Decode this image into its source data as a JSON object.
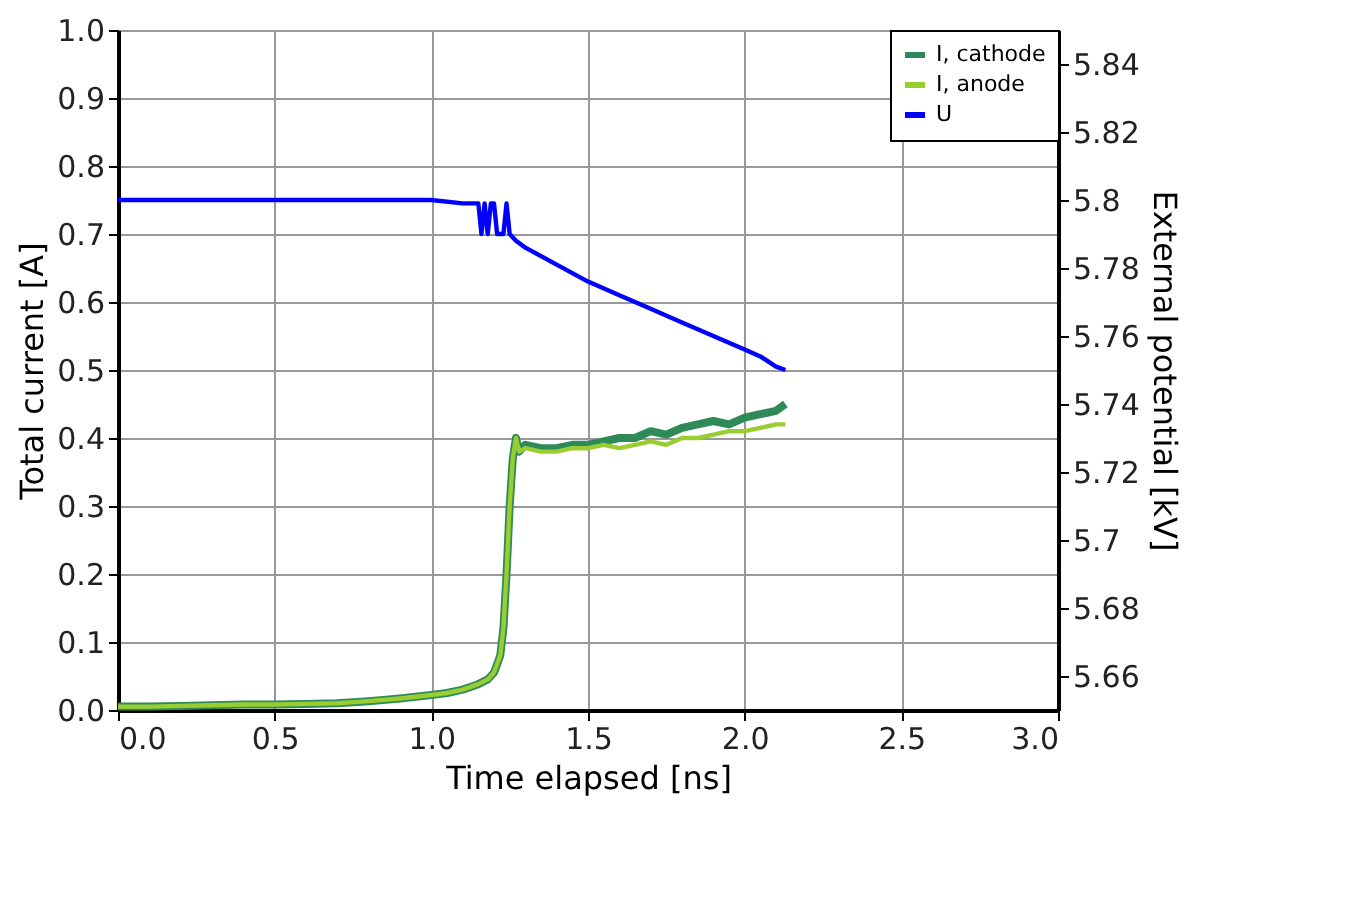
{
  "chart_data": {
    "type": "line",
    "xlabel": "Time elapsed [ns]",
    "ylabel": "Total current [A]",
    "y2label": "External potential [kV]",
    "xlim": [
      0,
      3
    ],
    "xticks": [
      {
        "value": 0,
        "label": "0.0"
      },
      0.5,
      {
        "value": 1,
        "label": "1.0"
      },
      1.5,
      {
        "value": 2,
        "label": "2.0"
      },
      2.5,
      {
        "value": 3,
        "label": "3.0"
      }
    ],
    "ylim": [
      0,
      1
    ],
    "yticks": [
      {
        "value": 0,
        "label": "0.0"
      },
      0.1,
      0.2,
      0.3,
      0.4,
      0.5,
      0.6,
      0.7,
      0.8,
      0.9,
      {
        "value": 1,
        "label": "1.0"
      }
    ],
    "y2lim": [
      5.65,
      5.85
    ],
    "y2ticks": [
      5.66,
      5.68,
      5.7,
      5.72,
      5.74,
      5.76,
      5.78,
      5.8,
      5.82,
      5.84
    ],
    "grid": true,
    "legend": "top right",
    "line_style": "solid",
    "marker": "none",
    "series": [
      {
        "name": "I, cathode",
        "color": "#2e8b57",
        "x": [
          0,
          0.1,
          0.2,
          0.3,
          0.4,
          0.5,
          0.6,
          0.7,
          0.8,
          0.9,
          1.0,
          1.05,
          1.1,
          1.15,
          1.18,
          1.2,
          1.22,
          1.23,
          1.24,
          1.25,
          1.26,
          1.27,
          1.28,
          1.3,
          1.35,
          1.4,
          1.45,
          1.5,
          1.55,
          1.6,
          1.65,
          1.7,
          1.75,
          1.8,
          1.85,
          1.9,
          1.95,
          2.0,
          2.05,
          2.1,
          2.13
        ],
        "values": [
          0.005,
          0.005,
          0.006,
          0.007,
          0.008,
          0.008,
          0.009,
          0.01,
          0.013,
          0.017,
          0.022,
          0.025,
          0.03,
          0.038,
          0.045,
          0.055,
          0.08,
          0.12,
          0.2,
          0.3,
          0.37,
          0.4,
          0.38,
          0.39,
          0.385,
          0.385,
          0.39,
          0.39,
          0.395,
          0.4,
          0.4,
          0.41,
          0.405,
          0.415,
          0.42,
          0.425,
          0.42,
          0.43,
          0.435,
          0.44,
          0.45
        ]
      },
      {
        "name": "I, anode",
        "color": "#9acd32",
        "x": [
          0,
          0.1,
          0.2,
          0.3,
          0.4,
          0.5,
          0.6,
          0.7,
          0.8,
          0.9,
          1.0,
          1.05,
          1.1,
          1.15,
          1.18,
          1.2,
          1.22,
          1.23,
          1.24,
          1.25,
          1.26,
          1.27,
          1.28,
          1.3,
          1.35,
          1.4,
          1.45,
          1.5,
          1.55,
          1.6,
          1.65,
          1.7,
          1.75,
          1.8,
          1.85,
          1.9,
          1.95,
          2.0,
          2.05,
          2.1,
          2.13
        ],
        "values": [
          0.005,
          0.005,
          0.006,
          0.007,
          0.008,
          0.008,
          0.009,
          0.01,
          0.013,
          0.017,
          0.022,
          0.025,
          0.03,
          0.038,
          0.045,
          0.055,
          0.08,
          0.12,
          0.2,
          0.3,
          0.37,
          0.4,
          0.38,
          0.385,
          0.38,
          0.38,
          0.385,
          0.385,
          0.39,
          0.385,
          0.39,
          0.395,
          0.39,
          0.4,
          0.4,
          0.405,
          0.41,
          0.41,
          0.415,
          0.42,
          0.42
        ]
      },
      {
        "name": "U",
        "color": "#0000ff",
        "axis": "y2",
        "x": [
          0,
          0.1,
          0.2,
          0.3,
          0.4,
          0.5,
          0.6,
          0.7,
          0.8,
          0.9,
          1.0,
          1.1,
          1.15,
          1.16,
          1.17,
          1.18,
          1.19,
          1.2,
          1.21,
          1.22,
          1.23,
          1.24,
          1.25,
          1.27,
          1.3,
          1.4,
          1.5,
          1.6,
          1.7,
          1.8,
          1.9,
          2.0,
          2.05,
          2.1,
          2.13
        ],
        "values": [
          5.8,
          5.8,
          5.8,
          5.8,
          5.8,
          5.8,
          5.8,
          5.8,
          5.8,
          5.8,
          5.8,
          5.799,
          5.799,
          5.79,
          5.799,
          5.79,
          5.799,
          5.799,
          5.79,
          5.79,
          5.79,
          5.799,
          5.79,
          5.788,
          5.786,
          5.781,
          5.776,
          5.772,
          5.768,
          5.764,
          5.76,
          5.756,
          5.754,
          5.751,
          5.75
        ]
      }
    ]
  }
}
